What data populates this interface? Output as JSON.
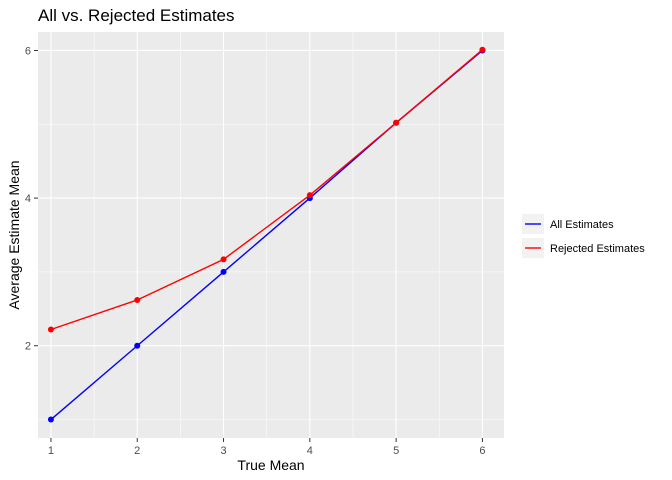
{
  "chart_data": {
    "type": "line",
    "title": "All vs. Rejected Estimates",
    "xlabel": "True Mean",
    "ylabel": "Average Estimate Mean",
    "x": [
      1,
      2,
      3,
      4,
      5,
      6
    ],
    "xlim": [
      0.85,
      6.25
    ],
    "ylim": [
      0.75,
      6.25
    ],
    "x_ticks": [
      1,
      2,
      3,
      4,
      5,
      6
    ],
    "y_ticks": [
      2,
      4,
      6
    ],
    "grid": true,
    "legend_position": "right",
    "series": [
      {
        "name": "All Estimates",
        "color": "#0000ff",
        "values": [
          1.0,
          2.0,
          3.0,
          4.0,
          5.02,
          6.0
        ]
      },
      {
        "name": "Rejected Estimates",
        "color": "#ff0000",
        "values": [
          2.22,
          2.62,
          3.17,
          4.04,
          5.02,
          6.01
        ]
      }
    ],
    "panel_background": "#ebebeb",
    "gridline_color": "#ffffff",
    "legend_key_background": "#f2f2f2"
  }
}
